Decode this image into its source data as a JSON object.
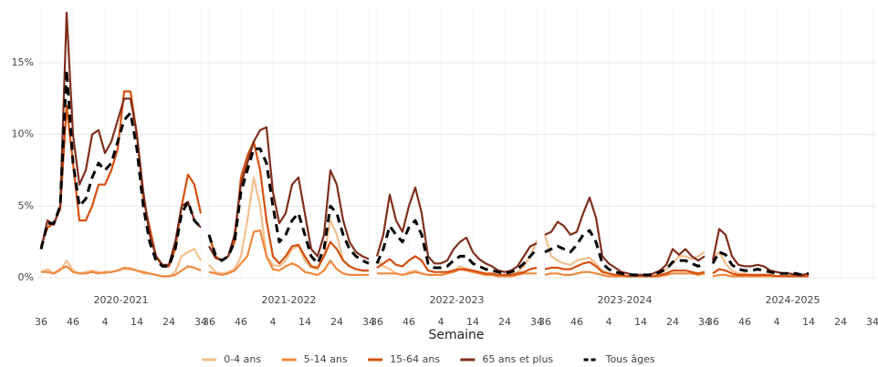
{
  "chart_data": {
    "type": "line",
    "xlabel": "Semaine",
    "panels": [
      "2020-2021",
      "2021-2022",
      "2022-2023",
      "2023-2024",
      "2024-2025"
    ],
    "x": [
      0,
      2,
      4,
      6,
      8,
      10,
      12,
      14,
      16,
      18,
      20,
      22,
      24,
      26,
      28,
      30,
      32,
      34,
      36,
      38,
      40,
      42,
      44,
      46,
      48,
      50
    ],
    "xlim": [
      0,
      50
    ],
    "xticks": [
      {
        "value": 0,
        "label": "36"
      },
      {
        "value": 10,
        "label": "46"
      },
      {
        "value": 20,
        "label": "4"
      },
      {
        "value": 30,
        "label": "14"
      },
      {
        "value": 40,
        "label": "24"
      },
      {
        "value": 50,
        "label": "34"
      }
    ],
    "ylim": [
      0,
      19
    ],
    "yticks": [
      {
        "value": 0,
        "label": "0%"
      },
      {
        "value": 5,
        "label": "5%"
      },
      {
        "value": 10,
        "label": "10%"
      },
      {
        "value": 15,
        "label": "15%"
      }
    ],
    "grid": true,
    "legend": "bottom",
    "series": [
      {
        "name": "0-4 ans",
        "color": "#f2bf8e",
        "values": [
          [
            0.4,
            0.6,
            0.3,
            0.5,
            1.2,
            0.5,
            0.3,
            0.4,
            0.5,
            0.4,
            0.3,
            0.4,
            0.5,
            0.6,
            0.7,
            0.5,
            0.3,
            0.3,
            0.2,
            0.1,
            0.1,
            0.4,
            1.5,
            1.8,
            2,
            1.2
          ],
          [
            0.9,
            0.4,
            0.3,
            0.4,
            0.6,
            1.5,
            4,
            7,
            5,
            1.5,
            0.9,
            0.8,
            1.2,
            2,
            2.2,
            1.2,
            0.7,
            0.6,
            1.5,
            4,
            3,
            1.2,
            0.8,
            0.6,
            0.5,
            0.5
          ],
          [
            1.2,
            0.8,
            0.6,
            0.3,
            0.2,
            0.4,
            0.5,
            0.3,
            0.2,
            0.2,
            0.2,
            0.3,
            0.5,
            0.8,
            0.6,
            0.4,
            0.3,
            0.2,
            0.2,
            0.2,
            0.2,
            0.2,
            0.4,
            0.8,
            1.5,
            2.6
          ],
          [
            3,
            1.5,
            1.2,
            1,
            0.9,
            1.2,
            1.3,
            1.4,
            1,
            0.5,
            0.3,
            0.2,
            0.1,
            0.1,
            0.1,
            0.1,
            0.1,
            0.1,
            0.3,
            0.6,
            1,
            1.5,
            1.5,
            1.3,
            1.5,
            1.8
          ],
          [
            1.3,
            1.8,
            1,
            0.5,
            0.3,
            0.3,
            0.2,
            0.2,
            0.2,
            0.1,
            0.1,
            0.1,
            0.1,
            0.1,
            0.1,
            0.1,
            null,
            null,
            null,
            null,
            null,
            null,
            null,
            null,
            null,
            null
          ]
        ]
      },
      {
        "name": "5-14 ans",
        "color": "#f0883e",
        "values": [
          [
            0.4,
            0.4,
            0.3,
            0.6,
            0.8,
            0.4,
            0.3,
            0.3,
            0.4,
            0.3,
            0.4,
            0.4,
            0.5,
            0.7,
            0.6,
            0.5,
            0.4,
            0.3,
            0.2,
            0.1,
            0.1,
            0.2,
            0.5,
            0.8,
            0.7,
            0.5
          ],
          [
            0.4,
            0.3,
            0.2,
            0.3,
            0.5,
            1,
            1.5,
            3.2,
            3.3,
            1.5,
            0.6,
            0.5,
            0.8,
            1,
            0.8,
            0.4,
            0.3,
            0.2,
            0.5,
            1.2,
            0.6,
            0.3,
            0.2,
            0.2,
            0.2,
            0.2
          ],
          [
            0.3,
            0.3,
            0.3,
            0.3,
            0.2,
            0.3,
            0.4,
            0.3,
            0.2,
            0.2,
            0.2,
            0.3,
            0.4,
            0.6,
            0.5,
            0.4,
            0.3,
            0.2,
            0.2,
            0.1,
            0.1,
            0.1,
            0.2,
            0.3,
            0.3,
            0.3
          ],
          [
            0.2,
            0.3,
            0.3,
            0.2,
            0.2,
            0.3,
            0.4,
            0.4,
            0.3,
            0.2,
            0.1,
            0.1,
            0.1,
            0.1,
            0.1,
            0.1,
            0.1,
            0.1,
            0.1,
            0.2,
            0.3,
            0.3,
            0.3,
            0.3,
            0.2,
            0.3
          ],
          [
            0.1,
            0.2,
            0.2,
            0.1,
            0.1,
            0.1,
            0.1,
            0.1,
            0.1,
            0.1,
            0.1,
            0.1,
            0.1,
            0.1,
            0.1,
            0.1,
            null,
            null,
            null,
            null,
            null,
            null,
            null,
            null,
            null,
            null
          ]
        ]
      },
      {
        "name": "15-64 ans",
        "color": "#d4500f",
        "values": [
          [
            2.2,
            3.5,
            3.8,
            4.8,
            12,
            8,
            4,
            4,
            5,
            6.5,
            6.5,
            7.5,
            9,
            13,
            13,
            10,
            5.5,
            3.5,
            1.5,
            0.8,
            0.8,
            2,
            5,
            7.2,
            6.5,
            4.5
          ],
          [
            3,
            1.5,
            1.2,
            1.5,
            2.5,
            7,
            8.5,
            9.5,
            7.5,
            4,
            1.5,
            1,
            1.5,
            2.2,
            2.3,
            1.5,
            0.8,
            0.7,
            1.5,
            2.5,
            2,
            1.2,
            0.8,
            0.6,
            0.5,
            0.5
          ],
          [
            0.7,
            1,
            1.3,
            0.9,
            0.8,
            1.2,
            1.5,
            1.2,
            0.5,
            0.4,
            0.4,
            0.4,
            0.5,
            0.6,
            0.6,
            0.5,
            0.4,
            0.3,
            0.3,
            0.2,
            0.2,
            0.2,
            0.3,
            0.4,
            0.6,
            0.7
          ],
          [
            0.6,
            0.7,
            0.7,
            0.6,
            0.6,
            0.8,
            1,
            1.1,
            0.8,
            0.4,
            0.3,
            0.2,
            0.2,
            0.1,
            0.1,
            0.1,
            0.1,
            0.1,
            0.2,
            0.3,
            0.5,
            0.5,
            0.5,
            0.4,
            0.3,
            0.4
          ],
          [
            0.3,
            0.6,
            0.5,
            0.3,
            0.2,
            0.2,
            0.2,
            0.2,
            0.2,
            0.2,
            0.1,
            0.1,
            0.1,
            0.1,
            0.1,
            0.1,
            null,
            null,
            null,
            null,
            null,
            null,
            null,
            null,
            null,
            null
          ]
        ]
      },
      {
        "name": "65 ans et plus",
        "color": "#7f2f1c",
        "values": [
          [
            2,
            4,
            3.7,
            5,
            18.5,
            10,
            6.5,
            7.5,
            10,
            10.3,
            8.7,
            9.5,
            11,
            12.5,
            12.5,
            10,
            6,
            3,
            1.5,
            0.9,
            0.9,
            2.5,
            5,
            5.3,
            4,
            3.5
          ],
          [
            2.2,
            1.4,
            1.2,
            1.5,
            3,
            6.5,
            8,
            9.5,
            10.3,
            10.5,
            6,
            3.8,
            4.5,
            6.5,
            7,
            4.5,
            2,
            1.5,
            3,
            7.5,
            6.5,
            4,
            2.5,
            1.8,
            1.5,
            1.3
          ],
          [
            1.5,
            3,
            5.8,
            4,
            3.2,
            5,
            6.3,
            4.5,
            1.5,
            1,
            1,
            1.2,
            2,
            2.5,
            2.8,
            1.8,
            1.3,
            1,
            0.8,
            0.5,
            0.4,
            0.5,
            0.8,
            1.5,
            2.2,
            2.4
          ],
          [
            3,
            3.2,
            3.9,
            3.6,
            3,
            3.2,
            4.5,
            5.6,
            4.2,
            1.5,
            1,
            0.7,
            0.4,
            0.3,
            0.2,
            0.2,
            0.2,
            0.3,
            0.5,
            0.9,
            2,
            1.6,
            2,
            1.5,
            1.2,
            1.5
          ],
          [
            1.2,
            3.4,
            3,
            1.5,
            0.9,
            0.8,
            0.8,
            0.9,
            0.8,
            0.5,
            0.4,
            0.3,
            0.3,
            0.2,
            0.2,
            0.3,
            null,
            null,
            null,
            null,
            null,
            null,
            null,
            null,
            null,
            null
          ]
        ]
      },
      {
        "name": "Tous âges",
        "color": "#000000",
        "dash": true,
        "values": [
          [
            2,
            3.8,
            3.8,
            5,
            14.5,
            8,
            5,
            5.5,
            7,
            8,
            7.5,
            8,
            9.5,
            11,
            11.5,
            9,
            5,
            2.5,
            1.2,
            0.8,
            0.8,
            2,
            4.5,
            5.3,
            4,
            3.5
          ],
          [
            3,
            1.6,
            1.2,
            1.5,
            2.5,
            6,
            7.5,
            9,
            9,
            8,
            5,
            2.5,
            3,
            4,
            4.5,
            3,
            1.5,
            1,
            2,
            5,
            4.5,
            3,
            2,
            1.5,
            1.2,
            1
          ],
          [
            1,
            2,
            3.6,
            3,
            2.5,
            3.5,
            4,
            3,
            1,
            0.7,
            0.7,
            0.8,
            1.2,
            1.5,
            1.5,
            1,
            0.8,
            0.6,
            0.5,
            0.4,
            0.3,
            0.4,
            0.6,
            1,
            1.5,
            2
          ],
          [
            1.8,
            2,
            2.2,
            2,
            1.8,
            2.3,
            3,
            3.3,
            2.5,
            1,
            0.6,
            0.4,
            0.3,
            0.2,
            0.2,
            0.2,
            0.2,
            0.2,
            0.4,
            0.6,
            1.1,
            1.2,
            1.2,
            1,
            0.8,
            1
          ],
          [
            1,
            1.8,
            1.6,
            0.9,
            0.6,
            0.5,
            0.5,
            0.6,
            0.5,
            0.4,
            0.3,
            0.3,
            0.3,
            0.3,
            0.2,
            0.3,
            null,
            null,
            null,
            null,
            null,
            null,
            null,
            null,
            null,
            null
          ]
        ]
      }
    ]
  }
}
